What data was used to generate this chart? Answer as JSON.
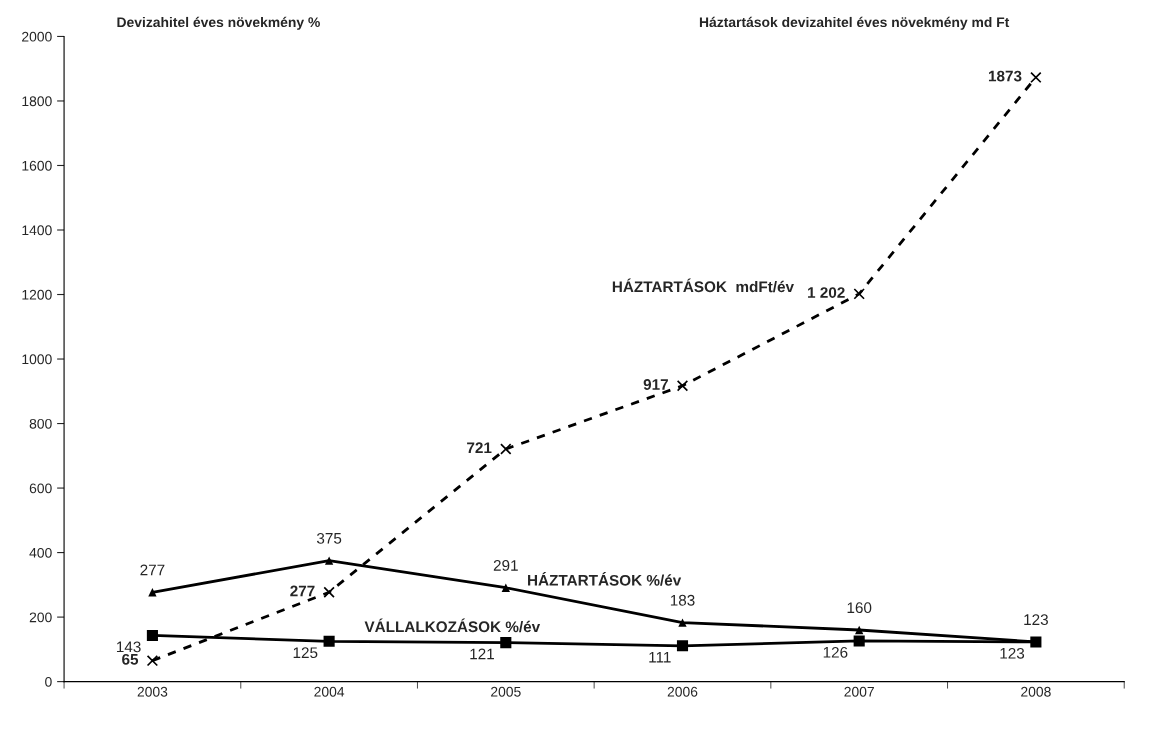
{
  "chart_data": {
    "type": "line",
    "annotations": [
      "Devizahitel éves növekmény %",
      "Háztartások devizahitel éves növekmény md Ft"
    ],
    "categories": [
      "2003",
      "2004",
      "2005",
      "2006",
      "2007",
      "2008"
    ],
    "ylim": [
      0,
      2000
    ],
    "yticks": [
      0,
      200,
      400,
      600,
      800,
      1000,
      1200,
      1400,
      1600,
      1800,
      2000
    ],
    "grid": false,
    "legend": false,
    "series": [
      {
        "name": "HÁZTARTÁSOK  mdFt/év",
        "color": "#000000",
        "marker": "cross",
        "line_style": "dashed",
        "values": [
          65,
          277,
          721,
          917,
          1202,
          1873
        ],
        "value_labels": [
          "65",
          "277",
          "721",
          "917",
          "1 202",
          "1873"
        ]
      },
      {
        "name": "HÁZTARTÁSOK %/év",
        "color": "#000000",
        "marker": "triangle",
        "line_style": "solid",
        "values": [
          277,
          375,
          291,
          183,
          160,
          123
        ],
        "value_labels": [
          "277",
          "375",
          "291",
          "183",
          "160",
          "123"
        ]
      },
      {
        "name": "VÁLLALKOZÁSOK %/év",
        "color": "#000000",
        "marker": "square",
        "line_style": "solid",
        "values": [
          143,
          125,
          121,
          111,
          126,
          123
        ],
        "value_labels": [
          "143",
          "125",
          "121",
          "111",
          "126",
          "123"
        ]
      }
    ]
  }
}
